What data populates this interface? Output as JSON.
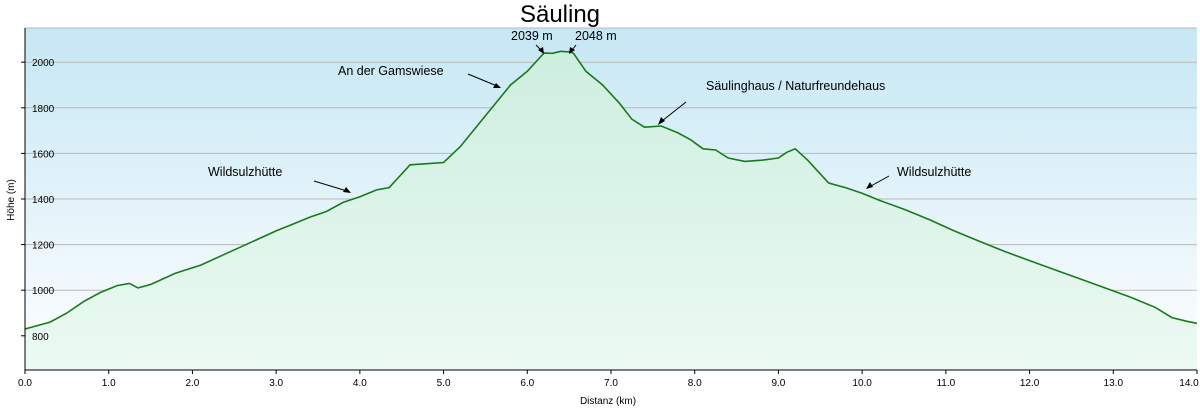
{
  "chart_data": {
    "type": "area",
    "title": "Säuling",
    "xlabel": "Distanz  (km)",
    "ylabel": "Höhe (m)",
    "xlim": [
      0,
      14
    ],
    "ylim": [
      650,
      2150
    ],
    "x_ticks": [
      0,
      1,
      2,
      3,
      4,
      5,
      6,
      7,
      8,
      9,
      10,
      11,
      12,
      13,
      14
    ],
    "x_tick_labels": [
      "0.0",
      "1.0",
      "2.0",
      "3.0",
      "4.0",
      "5.0",
      "6.0",
      "7.0",
      "8.0",
      "9.0",
      "10.0",
      "11.0",
      "12.0",
      "13.0",
      "14.0"
    ],
    "y_ticks": [
      800,
      1000,
      1200,
      1400,
      1600,
      1800,
      2000
    ],
    "y_tick_labels": [
      "800",
      "1000",
      "1200",
      "1400",
      "1600",
      "1800",
      "2000"
    ],
    "grid": true,
    "colors": {
      "line": "#1a7a1a",
      "fill_top": "#cdeee0",
      "fill_bottom": "#ecfaf2",
      "bg_top": "#c6e7f4",
      "bg_bottom": "#ffffff",
      "grid": "#b9b9b9"
    },
    "series": [
      {
        "x": [
          0.0,
          0.3,
          0.5,
          0.7,
          0.9,
          1.1,
          1.25,
          1.35,
          1.5,
          1.8,
          2.1,
          2.4,
          2.7,
          3.0,
          3.2,
          3.4,
          3.6,
          3.8,
          4.0,
          4.2,
          4.35,
          4.45,
          4.6,
          4.8,
          5.0,
          5.2,
          5.4,
          5.6,
          5.8,
          6.0,
          6.2,
          6.3,
          6.4,
          6.5,
          6.55,
          6.7,
          6.9,
          7.1,
          7.25,
          7.4,
          7.6,
          7.8,
          7.95,
          8.1,
          8.25,
          8.4,
          8.6,
          8.8,
          9.0,
          9.1,
          9.2,
          9.35,
          9.5,
          9.6,
          9.8,
          10.0,
          10.2,
          10.5,
          10.8,
          11.1,
          11.4,
          11.7,
          12.0,
          12.3,
          12.6,
          12.9,
          13.2,
          13.5,
          13.7,
          13.9,
          14.05
        ],
        "y": [
          830,
          860,
          900,
          950,
          990,
          1020,
          1030,
          1010,
          1025,
          1075,
          1110,
          1160,
          1210,
          1260,
          1290,
          1320,
          1345,
          1385,
          1410,
          1440,
          1450,
          1490,
          1550,
          1555,
          1560,
          1630,
          1720,
          1810,
          1900,
          1960,
          2040,
          2039,
          2048,
          2045,
          2040,
          1960,
          1900,
          1820,
          1750,
          1715,
          1720,
          1690,
          1660,
          1620,
          1615,
          1580,
          1565,
          1570,
          1580,
          1605,
          1620,
          1570,
          1510,
          1470,
          1450,
          1425,
          1395,
          1355,
          1310,
          1260,
          1215,
          1170,
          1130,
          1090,
          1050,
          1010,
          970,
          925,
          880,
          862,
          855
        ]
      }
    ],
    "annotations": [
      {
        "text": "Wildsulzhütte",
        "x": 3.95,
        "y": 1400
      },
      {
        "text": "An der Gamswiese",
        "x": 5.65,
        "y": 1915
      },
      {
        "text": "2039 m",
        "x": 6.2,
        "y": 2050
      },
      {
        "text": "2048 m",
        "x": 6.45,
        "y": 2055
      },
      {
        "text": "Säulinghaus / Naturfreundehaus",
        "x": 7.55,
        "y": 1725
      },
      {
        "text": "Wildsulzhütte",
        "x": 10.05,
        "y": 1440
      }
    ]
  }
}
